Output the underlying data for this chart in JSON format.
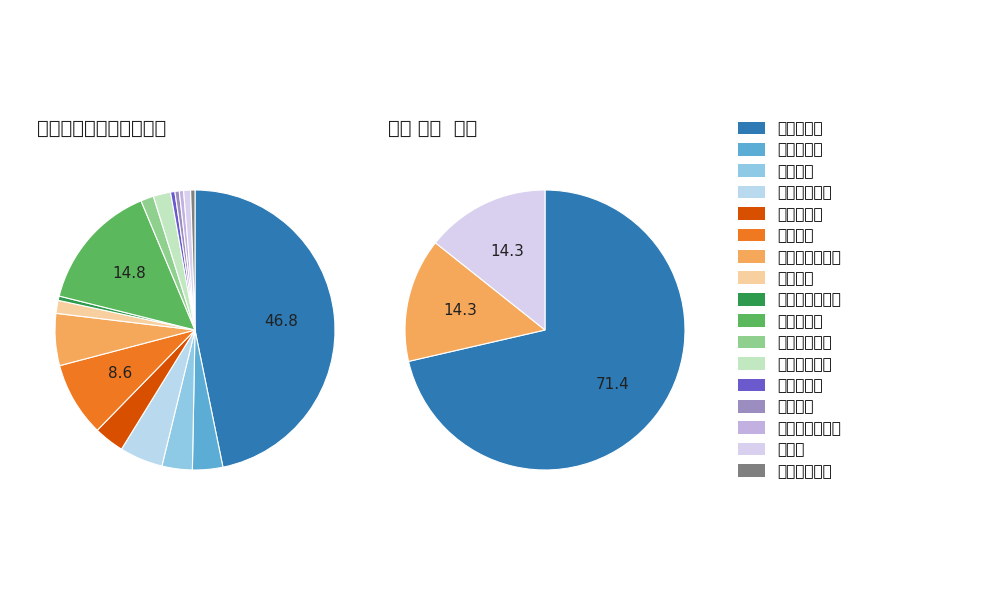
{
  "left_title": "セ・リーグ全プレイヤー",
  "right_title": "関根 大気  選手",
  "legend_labels": [
    "ストレート",
    "ツーシーム",
    "シュート",
    "カットボール",
    "スプリット",
    "フォーク",
    "チェンジアップ",
    "シンカー",
    "高速スライダー",
    "スライダー",
    "縦スライダー",
    "パワーカーブ",
    "スクリュー",
    "ナックル",
    "ナックルカーブ",
    "カーブ",
    "スローカーブ"
  ],
  "legend_colors": [
    "#2d7ab5",
    "#5badd6",
    "#8ecae6",
    "#b8d9ee",
    "#d94f00",
    "#f07820",
    "#f5a85a",
    "#f8d0a0",
    "#2e9a4e",
    "#5cb85c",
    "#8fd08f",
    "#c2e8c2",
    "#6a5acd",
    "#9b8dc0",
    "#c2b0e0",
    "#d8d0ee",
    "#808080"
  ],
  "left_slices": [
    46.8,
    3.5,
    3.5,
    5.0,
    3.5,
    8.6,
    6.0,
    1.5,
    0.5,
    14.8,
    1.5,
    2.0,
    0.5,
    0.5,
    0.5,
    0.8,
    0.5
  ],
  "right_slices": [
    71.4,
    0,
    0,
    0,
    0,
    0,
    14.3,
    0,
    0,
    0,
    0,
    0,
    0,
    0,
    0,
    14.3,
    0
  ],
  "left_labels_shown": {
    "0": "46.8",
    "9": "14.8",
    "5": "8.6"
  },
  "right_labels_shown": {
    "0": "71.4",
    "6": "14.3",
    "15": "14.3"
  },
  "background_color": "#ffffff",
  "text_color": "#212121",
  "title_fontsize": 14,
  "label_fontsize": 11,
  "legend_fontsize": 11
}
